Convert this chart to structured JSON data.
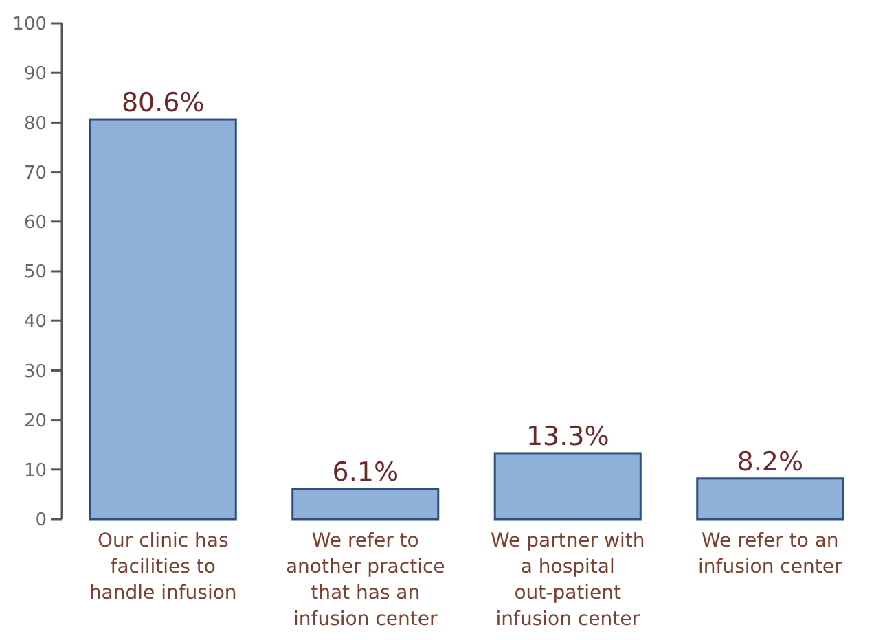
{
  "chart_data": {
    "type": "bar",
    "categories": [
      "Our clinic has facilities to handle infusion",
      "We refer to another practice that has an infusion center",
      "We partner with a hospital out-patient infusion center",
      "We refer to an infusion center"
    ],
    "values": [
      80.6,
      6.1,
      13.3,
      8.2
    ],
    "value_labels": [
      "80.6%",
      "6.1%",
      "13.3%",
      "8.2%"
    ],
    "color": "#8fb0d8",
    "ylim": [
      0,
      100
    ],
    "yticks": [
      0,
      10,
      20,
      30,
      40,
      50,
      60,
      70,
      80,
      90,
      100
    ],
    "grid": false
  }
}
